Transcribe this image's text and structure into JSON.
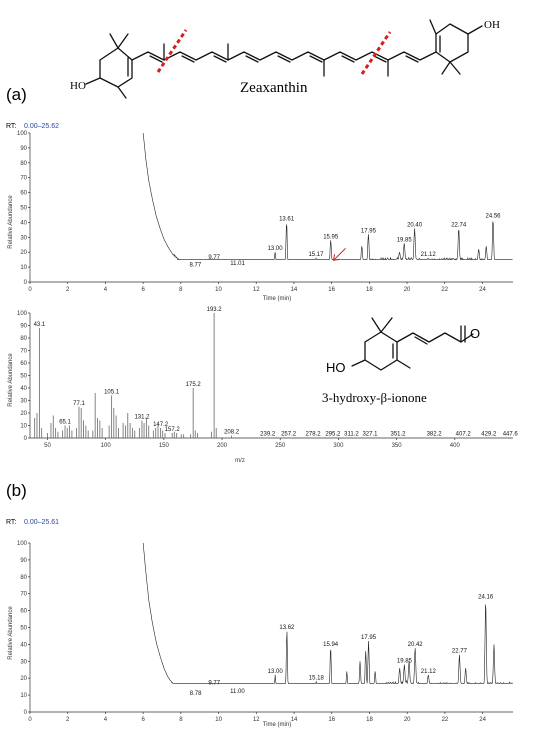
{
  "panel_labels": {
    "a": "(a)",
    "b": "(b)"
  },
  "molecules": {
    "zeaxanthin": {
      "name": "Zeaxanthin",
      "oh_left": "HO",
      "oh_right": "OH"
    },
    "ionone": {
      "name": "3-hydroxy-β-ionone",
      "ho": "HO",
      "o": "O"
    }
  },
  "chart_data": [
    {
      "type": "line",
      "id": "chrom_a",
      "rt_label": "RT:",
      "rt_range": "0.00–25.62",
      "xlabel": "Time (min)",
      "ylabel": "Relative Abundance",
      "xlim": [
        0,
        25.62
      ],
      "ylim": [
        0,
        100
      ],
      "x_ticks": [
        0,
        2,
        4,
        6,
        8,
        10,
        12,
        14,
        16,
        18,
        20,
        22,
        24
      ],
      "y_ticks": [
        0,
        10,
        20,
        30,
        40,
        50,
        60,
        70,
        80,
        90,
        100
      ],
      "baseline": [
        [
          6.0,
          100
        ],
        [
          6.15,
          82
        ],
        [
          6.3,
          68
        ],
        [
          6.5,
          55
        ],
        [
          6.7,
          44
        ],
        [
          6.9,
          36
        ],
        [
          7.1,
          29
        ],
        [
          7.3,
          24
        ],
        [
          7.5,
          20
        ],
        [
          7.8,
          16
        ],
        [
          8.1,
          13.5
        ],
        [
          8.5,
          11.5
        ],
        [
          9,
          10.5
        ],
        [
          10,
          9.8
        ],
        [
          11,
          9.5
        ],
        [
          12,
          9.6
        ],
        [
          13,
          10.2
        ],
        [
          14,
          11
        ],
        [
          15,
          11.8
        ],
        [
          16,
          12.5
        ],
        [
          17,
          13
        ],
        [
          18,
          14
        ],
        [
          19,
          15
        ],
        [
          20,
          15
        ],
        [
          21,
          14
        ],
        [
          22,
          14.5
        ],
        [
          23,
          15
        ],
        [
          24,
          14
        ],
        [
          25,
          13
        ],
        [
          25.62,
          13
        ]
      ],
      "peaks": [
        {
          "x": 8.77,
          "y": 9,
          "label": "8.77"
        },
        {
          "x": 9.77,
          "y": 14,
          "label": "9.77"
        },
        {
          "x": 11.01,
          "y": 10,
          "label": "11.01"
        },
        {
          "x": 13.0,
          "y": 20,
          "label": "13.00"
        },
        {
          "x": 13.61,
          "y": 40,
          "label": "13.61"
        },
        {
          "x": 15.17,
          "y": 16,
          "label": "15.17"
        },
        {
          "x": 15.95,
          "y": 28,
          "label": "15.95"
        },
        {
          "x": 17.95,
          "y": 32,
          "label": "17.95"
        },
        {
          "x": 19.85,
          "y": 26,
          "label": "19.85"
        },
        {
          "x": 20.4,
          "y": 36,
          "label": "20.40"
        },
        {
          "x": 21.12,
          "y": 16,
          "label": "21.12"
        },
        {
          "x": 22.74,
          "y": 36,
          "label": "22.74"
        },
        {
          "x": 24.56,
          "y": 42,
          "label": "24.56"
        }
      ],
      "extra_peaks": [
        [
          17.6,
          24
        ],
        [
          19.6,
          20
        ],
        [
          23.8,
          22
        ],
        [
          24.2,
          24
        ]
      ],
      "arrow_at": 16.1
    },
    {
      "type": "bar",
      "id": "mass_spectrum",
      "xlabel": "m/z",
      "ylabel": "Relative Abundance",
      "xlim": [
        35,
        450
      ],
      "ylim": [
        0,
        100
      ],
      "x_ticks": [
        50,
        100,
        150,
        200,
        250,
        300,
        350,
        400
      ],
      "y_ticks": [
        0,
        10,
        20,
        30,
        40,
        50,
        60,
        70,
        80,
        90,
        100
      ],
      "labeled": [
        {
          "x": 43.1,
          "y": 88,
          "label": "43.1"
        },
        {
          "x": 65.1,
          "y": 10,
          "label": "65.1"
        },
        {
          "x": 77.1,
          "y": 25,
          "label": "77.1"
        },
        {
          "x": 105.1,
          "y": 34,
          "label": "105.1"
        },
        {
          "x": 131.2,
          "y": 14,
          "label": "131.2"
        },
        {
          "x": 147.2,
          "y": 8,
          "label": "147.2"
        },
        {
          "x": 157.2,
          "y": 4,
          "label": "157.2"
        },
        {
          "x": 175.2,
          "y": 40,
          "label": "175.2"
        },
        {
          "x": 193.2,
          "y": 100,
          "label": "193.2"
        },
        {
          "x": 208.2,
          "y": 2,
          "label": "208.2"
        },
        {
          "x": 239.2,
          "y": 0.5,
          "label": "239.2"
        },
        {
          "x": 257.2,
          "y": 0.5,
          "label": "257.2"
        },
        {
          "x": 278.2,
          "y": 0.5,
          "label": "278.2"
        },
        {
          "x": 295.2,
          "y": 0.5,
          "label": "295.2"
        },
        {
          "x": 311.2,
          "y": 0.5,
          "label": "311.2"
        },
        {
          "x": 327.1,
          "y": 0.5,
          "label": "327.1"
        },
        {
          "x": 351.2,
          "y": 0.5,
          "label": "351.2"
        },
        {
          "x": 382.2,
          "y": 0.5,
          "label": "382.2"
        },
        {
          "x": 407.2,
          "y": 0.5,
          "label": "407.2"
        },
        {
          "x": 429.2,
          "y": 0.5,
          "label": "429.2"
        },
        {
          "x": 447.6,
          "y": 0.5,
          "label": "447.6"
        }
      ],
      "unlabeled": [
        [
          39,
          16
        ],
        [
          41,
          20
        ],
        [
          45,
          8
        ],
        [
          50,
          4
        ],
        [
          53,
          12
        ],
        [
          55,
          18
        ],
        [
          57,
          8
        ],
        [
          59,
          5
        ],
        [
          63,
          6
        ],
        [
          67,
          8
        ],
        [
          69,
          10
        ],
        [
          71,
          6
        ],
        [
          75,
          8
        ],
        [
          79,
          24
        ],
        [
          81,
          14
        ],
        [
          83,
          10
        ],
        [
          85,
          6
        ],
        [
          89,
          6
        ],
        [
          91,
          36
        ],
        [
          93,
          16
        ],
        [
          95,
          14
        ],
        [
          97,
          8
        ],
        [
          103,
          10
        ],
        [
          107,
          24
        ],
        [
          109,
          18
        ],
        [
          111,
          8
        ],
        [
          115,
          12
        ],
        [
          117,
          10
        ],
        [
          119,
          20
        ],
        [
          121,
          12
        ],
        [
          123,
          8
        ],
        [
          125,
          6
        ],
        [
          129,
          8
        ],
        [
          133,
          12
        ],
        [
          135,
          16
        ],
        [
          137,
          10
        ],
        [
          141,
          6
        ],
        [
          143,
          8
        ],
        [
          145,
          10
        ],
        [
          149,
          6
        ],
        [
          151,
          4
        ],
        [
          159,
          5
        ],
        [
          161,
          4
        ],
        [
          165,
          3
        ],
        [
          167,
          3
        ],
        [
          173,
          3
        ],
        [
          177,
          6
        ],
        [
          179,
          4
        ],
        [
          191,
          5
        ],
        [
          195,
          8
        ]
      ]
    },
    {
      "type": "line",
      "id": "chrom_b",
      "rt_label": "RT:",
      "rt_range": "0.00–25.61",
      "xlabel": "Time (min)",
      "ylabel": "Relative Abundance",
      "xlim": [
        0,
        25.61
      ],
      "ylim": [
        0,
        100
      ],
      "x_ticks": [
        0,
        2,
        4,
        6,
        8,
        10,
        12,
        14,
        16,
        18,
        20,
        22,
        24
      ],
      "y_ticks": [
        0,
        10,
        20,
        30,
        40,
        50,
        60,
        70,
        80,
        90,
        100
      ],
      "baseline": [
        [
          6.0,
          100
        ],
        [
          6.15,
          82
        ],
        [
          6.3,
          66
        ],
        [
          6.5,
          52
        ],
        [
          6.7,
          41
        ],
        [
          6.9,
          33
        ],
        [
          7.1,
          26
        ],
        [
          7.3,
          21
        ],
        [
          7.6,
          16
        ],
        [
          8,
          12
        ],
        [
          8.5,
          10
        ],
        [
          9,
          9.5
        ],
        [
          10,
          9
        ],
        [
          11,
          8.5
        ],
        [
          12,
          8.5
        ],
        [
          13,
          9
        ],
        [
          14,
          10
        ],
        [
          15,
          11
        ],
        [
          16,
          12
        ],
        [
          17,
          13
        ],
        [
          18,
          14
        ],
        [
          19,
          16
        ],
        [
          20,
          17
        ],
        [
          21,
          16
        ],
        [
          22,
          16
        ],
        [
          23,
          16
        ],
        [
          24,
          16
        ],
        [
          25,
          16
        ],
        [
          25.61,
          16
        ]
      ],
      "peaks": [
        {
          "x": 8.78,
          "y": 9,
          "label": "8.78"
        },
        {
          "x": 9.77,
          "y": 15,
          "label": "9.77"
        },
        {
          "x": 11.0,
          "y": 10,
          "label": "11.00"
        },
        {
          "x": 13.0,
          "y": 22,
          "label": "13.00"
        },
        {
          "x": 13.62,
          "y": 48,
          "label": "13.62"
        },
        {
          "x": 15.18,
          "y": 18,
          "label": "15.18"
        },
        {
          "x": 15.94,
          "y": 38,
          "label": "15.94"
        },
        {
          "x": 17.95,
          "y": 42,
          "label": "17.95"
        },
        {
          "x": 19.85,
          "y": 28,
          "label": "19.85"
        },
        {
          "x": 20.42,
          "y": 38,
          "label": "20.42"
        },
        {
          "x": 21.12,
          "y": 22,
          "label": "21.12"
        },
        {
          "x": 22.77,
          "y": 34,
          "label": "22.77"
        },
        {
          "x": 24.16,
          "y": 66,
          "label": "24.16"
        }
      ],
      "extra_peaks": [
        [
          17.5,
          30
        ],
        [
          17.8,
          36
        ],
        [
          19.6,
          26
        ],
        [
          20.1,
          30
        ],
        [
          23.1,
          26
        ],
        [
          24.6,
          40
        ],
        [
          16.8,
          24
        ],
        [
          18.3,
          24
        ]
      ]
    }
  ]
}
